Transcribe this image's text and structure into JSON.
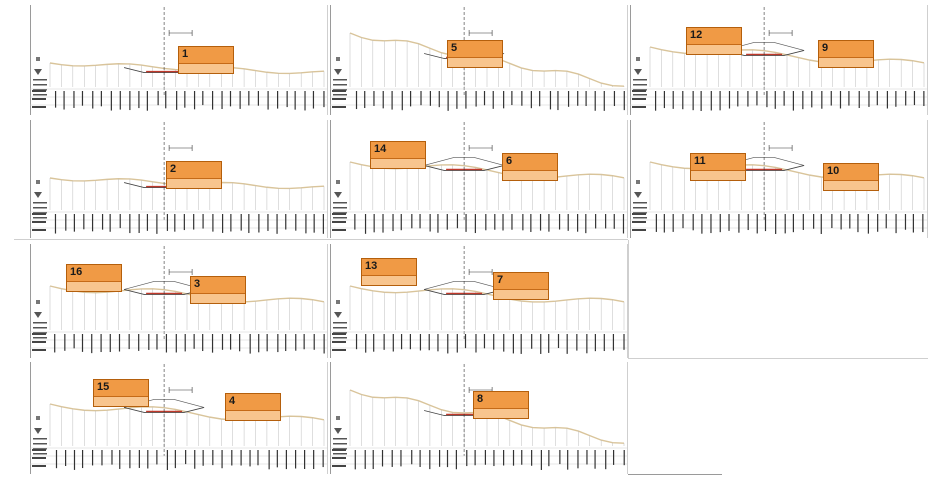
{
  "colors": {
    "ground_line": "#d9c49a",
    "box_fill_top": "#f09a45",
    "box_fill_bottom": "#f8c58e",
    "box_border": "#b45f0c",
    "grid": "#bdbdbd",
    "text": "#1a1a1a",
    "road": "#c0392b"
  },
  "panels": [
    {
      "id": "p1",
      "boxes": [
        {
          "num": "1"
        }
      ]
    },
    {
      "id": "p5",
      "boxes": [
        {
          "num": "5"
        }
      ]
    },
    {
      "id": "p12",
      "boxes": [
        {
          "num": "12"
        },
        {
          "num": "9"
        }
      ]
    },
    {
      "id": "p2",
      "boxes": [
        {
          "num": "2"
        }
      ]
    },
    {
      "id": "p14",
      "boxes": [
        {
          "num": "14"
        },
        {
          "num": "6"
        }
      ]
    },
    {
      "id": "p11",
      "boxes": [
        {
          "num": "11"
        },
        {
          "num": "10"
        }
      ]
    },
    {
      "id": "p16",
      "boxes": [
        {
          "num": "16"
        },
        {
          "num": "3"
        }
      ]
    },
    {
      "id": "p13",
      "boxes": [
        {
          "num": "13"
        },
        {
          "num": "7"
        }
      ]
    },
    {
      "id": "p15",
      "boxes": [
        {
          "num": "15"
        },
        {
          "num": "4"
        }
      ]
    },
    {
      "id": "p8",
      "boxes": [
        {
          "num": "8"
        }
      ]
    }
  ]
}
